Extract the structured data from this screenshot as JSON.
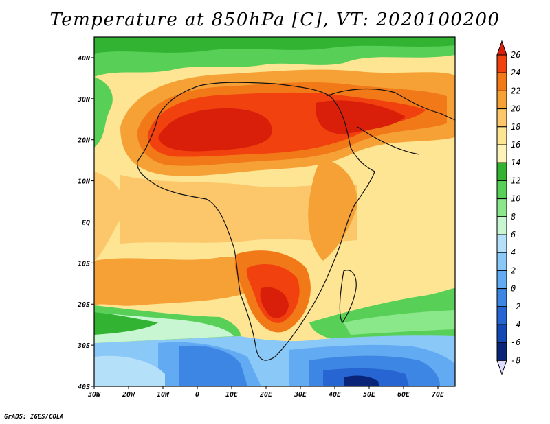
{
  "title": "Temperature at 850hPa [C], VT: 2020100200",
  "credit": "GrADS: IGES/COLA",
  "map": {
    "region": "Africa",
    "variable": "Temperature at 850hPa",
    "units": "C",
    "valid_time": "2020100200",
    "lon_range": [
      -30,
      75
    ],
    "lat_range": [
      -40,
      45
    ],
    "x_ticks": [
      "30W",
      "20W",
      "10W",
      "0",
      "10E",
      "20E",
      "30E",
      "40E",
      "50E",
      "60E",
      "70E"
    ],
    "y_ticks": [
      "40N",
      "30N",
      "20N",
      "10N",
      "EQ",
      "10S",
      "20S",
      "30S",
      "40S"
    ]
  },
  "colorbar": {
    "labels": [
      "26",
      "24",
      "22",
      "20",
      "18",
      "16",
      "14",
      "12",
      "10",
      "8",
      "6",
      "4",
      "2",
      "0",
      "-2",
      "-4",
      "-6",
      "-8"
    ],
    "colors": [
      "#d91e0a",
      "#f0410f",
      "#f27918",
      "#f6a136",
      "#fbc76a",
      "#fde594",
      "#fdf3b8",
      "#32b432",
      "#58d058",
      "#8ae88a",
      "#c8f5d2",
      "#b4e0fa",
      "#8ac8f8",
      "#62aaf2",
      "#3e86e4",
      "#2766d2",
      "#1448b4",
      "#0a2478",
      "#dcdcff"
    ]
  }
}
